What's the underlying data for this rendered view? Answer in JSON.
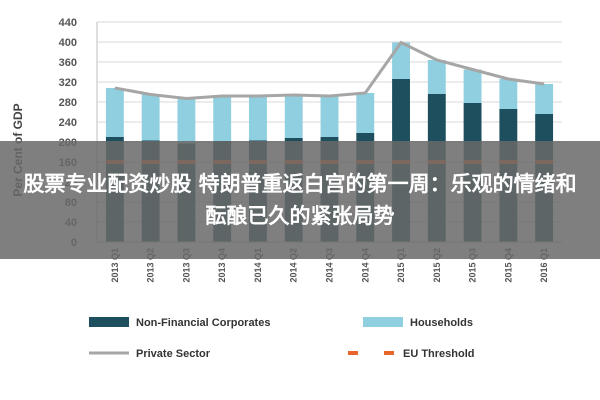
{
  "overlay": {
    "headline": "股票专业配资炒股 特朗普重返白宫的第一周：乐观的情绪和酝酿已久的紧张局势"
  },
  "chart_data": {
    "type": "bar",
    "stacked": true,
    "ylabel": "Per Cent of GDP",
    "ylim": [
      0,
      440
    ],
    "yticks": [
      0,
      40,
      80,
      120,
      160,
      200,
      240,
      280,
      320,
      360,
      400,
      440
    ],
    "grid": true,
    "categories": [
      "2013 Q1",
      "2013 Q2",
      "2013 Q3",
      "2013 Q4",
      "2014 Q1",
      "2014 Q2",
      "2014 Q3",
      "2014 Q4",
      "2015 Q1",
      "2015 Q2",
      "2015 Q3",
      "2015 Q4",
      "2016 Q1"
    ],
    "series": [
      {
        "name": "Non-Financial Corporates",
        "kind": "bar",
        "color": "#1e4f5e",
        "values": [
          210,
          203,
          197,
          202,
          203,
          208,
          210,
          218,
          326,
          296,
          278,
          266,
          256
        ]
      },
      {
        "name": "Households",
        "kind": "bar",
        "color": "#8fcfdf",
        "values": [
          98,
          92,
          90,
          90,
          89,
          86,
          82,
          80,
          73,
          68,
          67,
          60,
          60
        ]
      },
      {
        "name": "Private Sector",
        "kind": "line",
        "color": "#a6a6a6",
        "values": [
          308,
          295,
          287,
          292,
          292,
          294,
          292,
          298,
          399,
          364,
          345,
          326,
          316
        ]
      },
      {
        "name": "EU Threshold",
        "kind": "dashed-line",
        "color": "#e8662b",
        "values": [
          160,
          160,
          160,
          160,
          160,
          160,
          160,
          160,
          160,
          160,
          160,
          160,
          160
        ]
      }
    ],
    "legend_position": "bottom"
  }
}
